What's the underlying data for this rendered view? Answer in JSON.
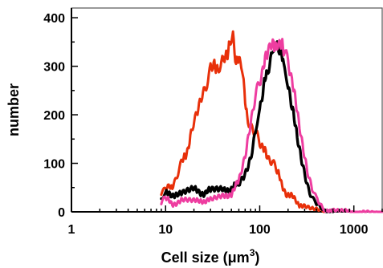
{
  "chart_data": {
    "type": "line",
    "xlabel": "Cell size (μm",
    "xlabel_superscript": "3",
    "xlabel_close": ")",
    "ylabel": "number",
    "x_scale": "log",
    "xlim": [
      1,
      2000
    ],
    "ylim": [
      0,
      420
    ],
    "x_ticks": [
      1,
      10,
      100,
      1000
    ],
    "x_tick_labels": [
      "1",
      "10",
      "100",
      "1000"
    ],
    "y_ticks": [
      0,
      100,
      200,
      300,
      400
    ],
    "y_tick_labels": [
      "0",
      "100",
      "200",
      "300",
      "400"
    ],
    "grid": false,
    "legend": "none",
    "series": [
      {
        "color": "#e8300a",
        "x": [
          9,
          10,
          11,
          12,
          13,
          15,
          17,
          19,
          21,
          24,
          27,
          30,
          33,
          36,
          40,
          44,
          48,
          52,
          56,
          60,
          65,
          70,
          75,
          80,
          90,
          100,
          110,
          120,
          135,
          150,
          170,
          190,
          220,
          250,
          300,
          350,
          400,
          450,
          550
        ],
        "y": [
          40,
          45,
          48,
          58,
          75,
          100,
          130,
          170,
          205,
          240,
          268,
          290,
          300,
          305,
          310,
          325,
          350,
          370,
          300,
          310,
          290,
          230,
          195,
          180,
          160,
          140,
          125,
          115,
          100,
          85,
          60,
          40,
          30,
          20,
          10,
          5,
          3,
          2,
          0
        ]
      },
      {
        "color": "#000000",
        "x": [
          9,
          10,
          12,
          15,
          20,
          25,
          30,
          40,
          50,
          60,
          70,
          80,
          90,
          100,
          110,
          120,
          135,
          150,
          165,
          180,
          200,
          220,
          250,
          280,
          320,
          360,
          400,
          450,
          500,
          600
        ],
        "y": [
          30,
          35,
          38,
          35,
          45,
          40,
          42,
          45,
          50,
          55,
          75,
          110,
          160,
          210,
          255,
          285,
          320,
          345,
          330,
          300,
          255,
          210,
          155,
          110,
          60,
          30,
          15,
          8,
          3,
          0
        ]
      },
      {
        "color": "#ee3da0",
        "x": [
          9,
          10,
          12,
          15,
          20,
          25,
          30,
          40,
          50,
          60,
          70,
          80,
          90,
          100,
          110,
          120,
          130,
          140,
          150,
          165,
          180,
          200,
          220,
          250,
          280,
          320,
          360,
          400,
          450,
          500,
          600,
          700,
          800,
          1000,
          1300,
          2000
        ],
        "y": [
          20,
          25,
          18,
          22,
          20,
          25,
          22,
          30,
          40,
          60,
          110,
          180,
          230,
          270,
          300,
          320,
          335,
          345,
          350,
          345,
          330,
          305,
          265,
          205,
          150,
          90,
          50,
          25,
          12,
          5,
          2,
          1,
          1,
          0,
          0,
          0
        ]
      }
    ]
  }
}
